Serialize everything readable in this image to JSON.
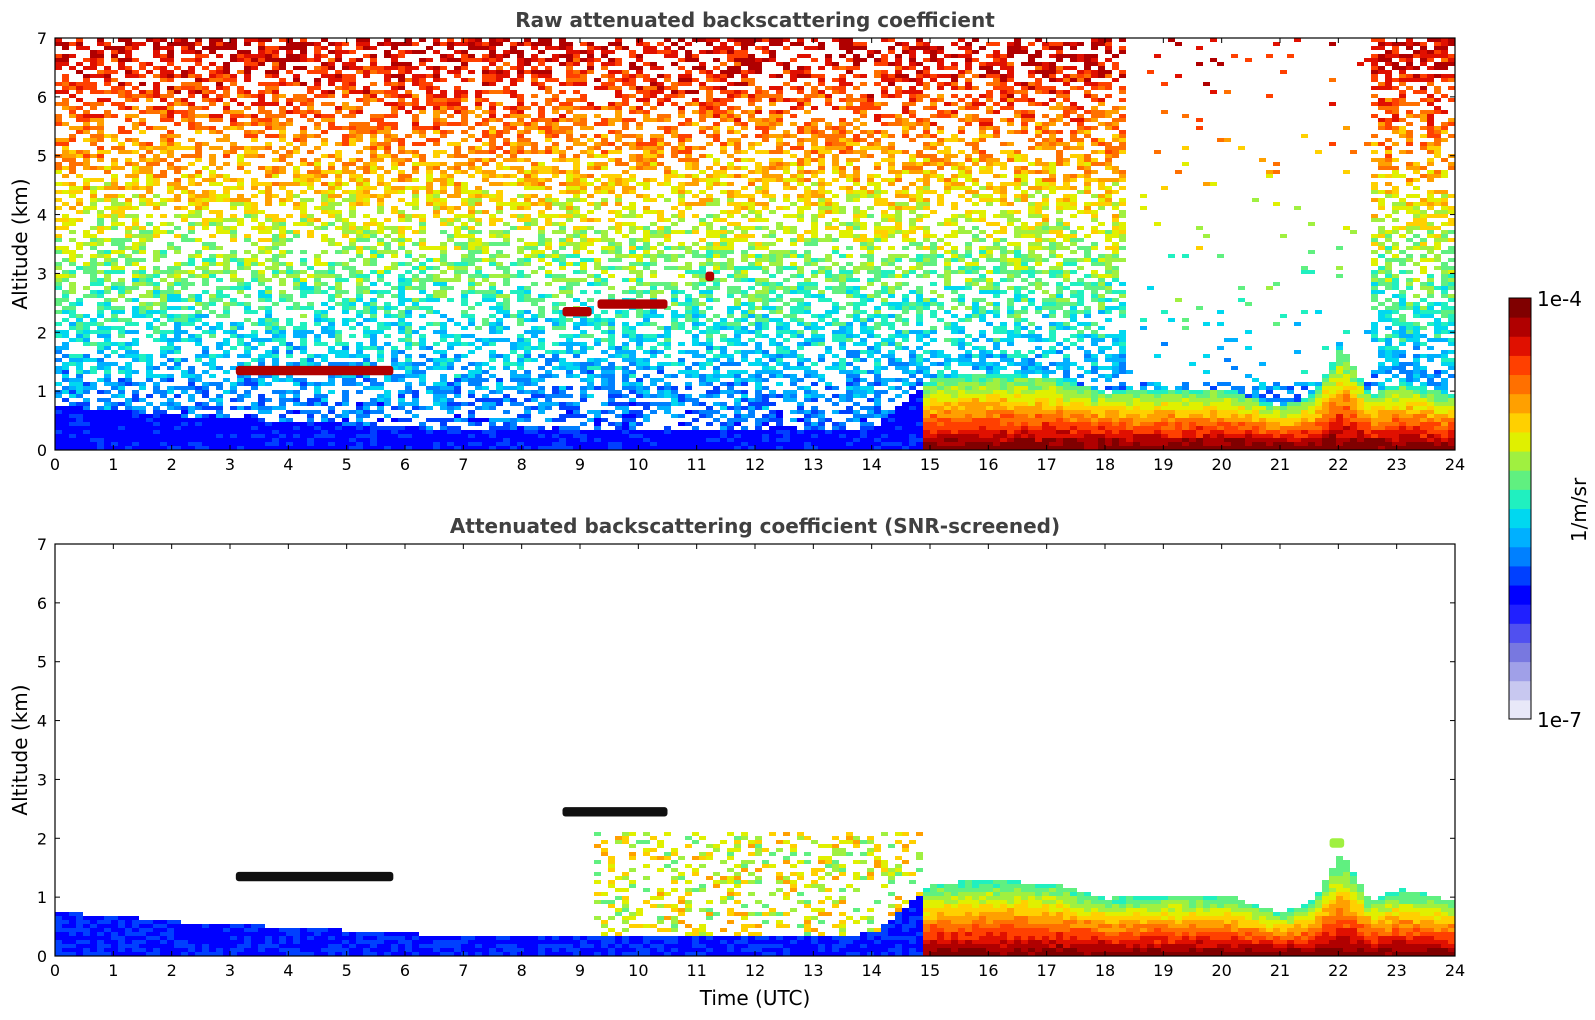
{
  "chart_data": [
    {
      "type": "heatmap",
      "title": "Raw attenuated backscattering coefficient",
      "xlabel": "",
      "ylabel": "Altitude (km)",
      "xlim": [
        0,
        24
      ],
      "ylim": [
        0,
        7
      ],
      "x_ticks": [
        0,
        1,
        2,
        3,
        4,
        5,
        6,
        7,
        8,
        9,
        10,
        11,
        12,
        13,
        14,
        15,
        16,
        17,
        18,
        19,
        20,
        21,
        22,
        23,
        24
      ],
      "y_ticks": [
        0,
        1,
        2,
        3,
        4,
        5,
        6,
        7
      ],
      "cloud_layers": [
        {
          "t_start": 3.1,
          "t_end": 5.8,
          "alt_km": 1.35,
          "intensity": "high"
        },
        {
          "t_start": 8.7,
          "t_end": 9.2,
          "alt_km": 2.35,
          "intensity": "high"
        },
        {
          "t_start": 9.3,
          "t_end": 10.5,
          "alt_km": 2.48,
          "intensity": "high"
        },
        {
          "t_start": 11.15,
          "t_end": 11.3,
          "alt_km": 2.95,
          "intensity": "high"
        }
      ],
      "boundary_layer_top_km": [
        [
          0,
          0.7
        ],
        [
          1,
          0.65
        ],
        [
          2,
          0.55
        ],
        [
          3,
          0.5
        ],
        [
          4,
          0.45
        ],
        [
          5,
          0.4
        ],
        [
          6,
          0.35
        ],
        [
          7,
          0.3
        ],
        [
          8,
          0.3
        ],
        [
          9,
          0.3
        ],
        [
          10,
          0.3
        ],
        [
          11,
          0.3
        ],
        [
          12,
          0.3
        ],
        [
          13,
          0.3
        ],
        [
          14,
          0.35
        ],
        [
          15,
          1.2
        ],
        [
          16,
          1.25
        ],
        [
          17,
          1.2
        ],
        [
          18,
          0.95
        ],
        [
          19,
          1.0
        ],
        [
          20,
          1.0
        ],
        [
          21,
          0.7
        ],
        [
          21.5,
          0.9
        ],
        [
          22,
          1.7
        ],
        [
          22.5,
          0.9
        ],
        [
          23,
          1.1
        ],
        [
          24,
          0.9
        ]
      ]
    },
    {
      "type": "heatmap",
      "title": "Attenuated backscattering coefficient (SNR-screened)",
      "xlabel": "Time (UTC)",
      "ylabel": "Altitude (km)",
      "xlim": [
        0,
        24
      ],
      "ylim": [
        0,
        7
      ],
      "x_ticks": [
        0,
        1,
        2,
        3,
        4,
        5,
        6,
        7,
        8,
        9,
        10,
        11,
        12,
        13,
        14,
        15,
        16,
        17,
        18,
        19,
        20,
        21,
        22,
        23,
        24
      ],
      "y_ticks": [
        0,
        1,
        2,
        3,
        4,
        5,
        6,
        7
      ],
      "cloud_layers": [
        {
          "t_start": 3.1,
          "t_end": 5.8,
          "alt_km": 1.35,
          "intensity": "saturated"
        },
        {
          "t_start": 8.7,
          "t_end": 10.5,
          "alt_km": 2.45,
          "intensity": "saturated"
        },
        {
          "t_start": 21.85,
          "t_end": 22.1,
          "alt_km": 1.92,
          "intensity": "medium"
        }
      ]
    }
  ],
  "colorbar": {
    "label": "1/m/sr",
    "max_label": "1e-4",
    "min_label": "1e-7",
    "scale": "log",
    "range": [
      1e-07,
      0.0001
    ],
    "colors": [
      "#e8e8f8",
      "#c8c8f0",
      "#a0a0e8",
      "#7878e0",
      "#5050f0",
      "#2020ff",
      "#0000ff",
      "#0040ff",
      "#0080ff",
      "#00b0ff",
      "#00d8f0",
      "#20f0c0",
      "#60f080",
      "#a0f040",
      "#e0f000",
      "#ffd000",
      "#ffa000",
      "#ff7000",
      "#ff4000",
      "#e01000",
      "#b00000",
      "#800000"
    ]
  }
}
